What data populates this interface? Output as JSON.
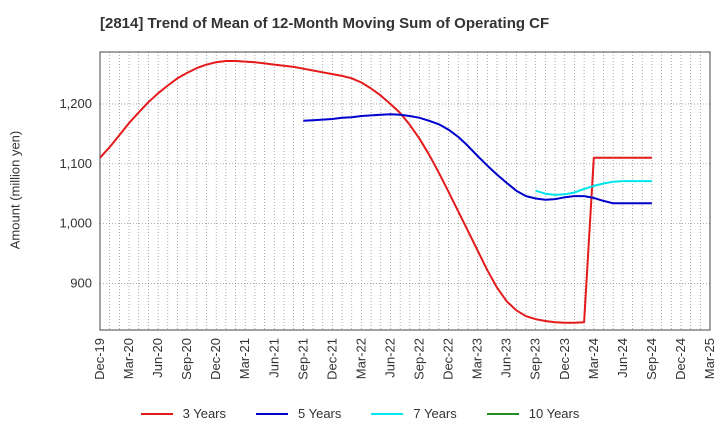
{
  "chart_data": {
    "type": "line",
    "title": "[2814]  Trend of Mean of 12-Month Moving Sum of Operating CF",
    "xlabel": "",
    "ylabel": "Amount (million yen)",
    "x_start": "Dec-19",
    "x_tick_labels": [
      "Dec-19",
      "Mar-20",
      "Jun-20",
      "Sep-20",
      "Dec-20",
      "Mar-21",
      "Jun-21",
      "Sep-21",
      "Dec-21",
      "Mar-22",
      "Jun-22",
      "Sep-22",
      "Dec-22",
      "Mar-23",
      "Jun-23",
      "Sep-23",
      "Dec-23",
      "Mar-24",
      "Jun-24",
      "Sep-24",
      "Dec-24",
      "Mar-25"
    ],
    "x_range_months": [
      0,
      63
    ],
    "ylim": [
      822,
      1287
    ],
    "y_ticks": [
      900,
      1000,
      1100,
      1200
    ],
    "y_tick_labels": [
      "900",
      "1,000",
      "1,100",
      "1,200"
    ],
    "grid": true,
    "legend_position": "bottom",
    "series": [
      {
        "name": "3 Years",
        "color": "#e41a1c",
        "x": [
          0,
          1,
          2,
          3,
          4,
          5,
          6,
          7,
          8,
          9,
          10,
          11,
          12,
          13,
          14,
          15,
          16,
          17,
          18,
          19,
          20,
          21,
          22,
          23,
          24,
          25,
          26,
          27,
          28,
          29,
          30,
          31,
          32,
          33,
          34,
          35,
          36,
          37,
          38,
          39,
          40,
          41,
          42,
          43,
          44,
          45,
          46,
          47,
          48,
          49,
          50,
          51,
          52,
          53,
          54,
          55,
          56,
          57
        ],
        "values": [
          1110,
          1128,
          1148,
          1168,
          1186,
          1203,
          1218,
          1231,
          1243,
          1252,
          1260,
          1266,
          1270,
          1272,
          1272,
          1271,
          1270,
          1268,
          1266,
          1264,
          1262,
          1259,
          1256,
          1253,
          1250,
          1247,
          1243,
          1236,
          1226,
          1214,
          1200,
          1185,
          1165,
          1142,
          1115,
          1085,
          1053,
          1020,
          988,
          955,
          922,
          893,
          870,
          855,
          845,
          840,
          837,
          835,
          834,
          834,
          835,
          1110,
          1110,
          1110,
          1110,
          1110,
          1110,
          1110
        ]
      },
      {
        "name": "5 Years",
        "color": "#0000cc",
        "x": [
          21,
          22,
          23,
          24,
          25,
          26,
          27,
          28,
          29,
          30,
          31,
          32,
          33,
          34,
          35,
          36,
          37,
          38,
          39,
          40,
          41,
          42,
          43,
          44,
          45,
          46,
          47,
          48,
          49,
          50,
          51,
          52,
          53,
          54,
          55,
          56,
          57
        ],
        "values": [
          1172,
          1173,
          1174,
          1175,
          1177,
          1178,
          1180,
          1181,
          1182,
          1183,
          1182,
          1180,
          1177,
          1172,
          1166,
          1157,
          1145,
          1130,
          1113,
          1097,
          1082,
          1068,
          1055,
          1046,
          1042,
          1040,
          1041,
          1044,
          1046,
          1046,
          1043,
          1038,
          1034,
          1034,
          1034,
          1034,
          1034
        ]
      },
      {
        "name": "7 Years",
        "color": "#00e5ee",
        "x": [
          45,
          46,
          47,
          48,
          49,
          50,
          51,
          52,
          53,
          54,
          55,
          56,
          57
        ],
        "values": [
          1055,
          1050,
          1048,
          1049,
          1052,
          1058,
          1063,
          1067,
          1070,
          1071,
          1071,
          1071,
          1071
        ]
      },
      {
        "name": "10 Years",
        "color": "#228b22",
        "x": [],
        "values": []
      }
    ]
  }
}
